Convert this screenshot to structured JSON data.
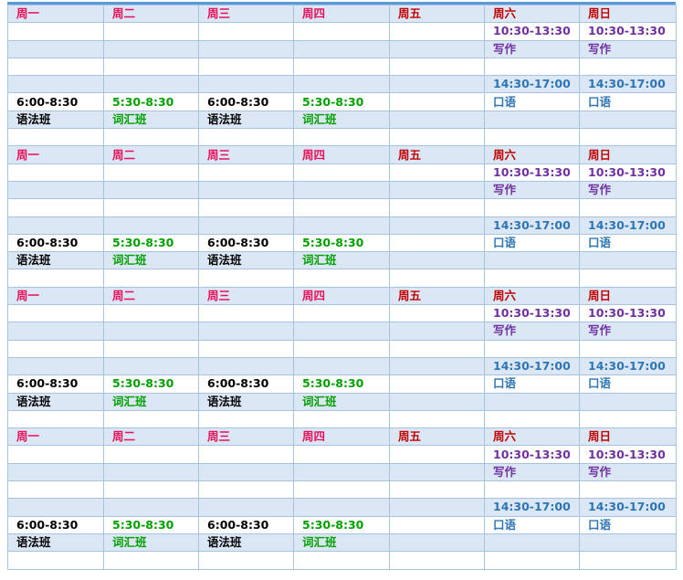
{
  "colors": {
    "weekday": "#e8115a",
    "fri": "#c00000",
    "weekend_header": "#c00000",
    "weekend_morning": "#7030a0",
    "weekend_afternoon": "#2e75b6",
    "grammar": "#000000",
    "vocab": "#00a000",
    "band": "#dbe7f4",
    "plain": "#ffffff",
    "border": "#a6c4e2",
    "top_rule": "#5b9bd5"
  },
  "blocks": [
    {
      "days": [
        "周一",
        "周二",
        "周三",
        "周四",
        "周五",
        "周六",
        "周日"
      ],
      "weekend_morning_time": [
        "10:30-13:30",
        "10:30-13:30"
      ],
      "weekend_morning_class": [
        "写作",
        "写作"
      ],
      "weekend_afternoon_time": [
        "14:30-17:00",
        "14:30-17:00"
      ],
      "weekend_afternoon_class": [
        "口语",
        "口语"
      ],
      "weekday_time": [
        "6:00-8:30",
        "5:30-8:30",
        "6:00-8:30",
        "5:30-8:30"
      ],
      "weekday_class": [
        "语法班",
        "词汇班",
        "语法班",
        "词汇班"
      ]
    },
    {
      "days": [
        "周一",
        "周二",
        "周三",
        "周四",
        "周五",
        "周六",
        "周日"
      ],
      "weekend_morning_time": [
        "10:30-13:30",
        "10:30-13:30"
      ],
      "weekend_morning_class": [
        "写作",
        "写作"
      ],
      "weekend_afternoon_time": [
        "14:30-17:00",
        "14:30-17:00"
      ],
      "weekend_afternoon_class": [
        "口语",
        "口语"
      ],
      "weekday_time": [
        "6:00-8:30",
        "5:30-8:30",
        "6:00-8:30",
        "5:30-8:30"
      ],
      "weekday_class": [
        "语法班",
        "词汇班",
        "语法班",
        "词汇班"
      ]
    },
    {
      "days": [
        "周一",
        "周二",
        "周三",
        "周四",
        "周五",
        "周六",
        "周日"
      ],
      "weekend_morning_time": [
        "10:30-13:30",
        "10:30-13:30"
      ],
      "weekend_morning_class": [
        "写作",
        "写作"
      ],
      "weekend_afternoon_time": [
        "14:30-17:00",
        "14:30-17:00"
      ],
      "weekend_afternoon_class": [
        "口语",
        "口语"
      ],
      "weekday_time": [
        "6:00-8:30",
        "5:30-8:30",
        "6:00-8:30",
        "5:30-8:30"
      ],
      "weekday_class": [
        "语法班",
        "词汇班",
        "语法班",
        "词汇班"
      ]
    },
    {
      "days": [
        "周一",
        "周二",
        "周三",
        "周四",
        "周五",
        "周六",
        "周日"
      ],
      "weekend_morning_time": [
        "10:30-13:30",
        "10:30-13:30"
      ],
      "weekend_morning_class": [
        "写作",
        "写作"
      ],
      "weekend_afternoon_time": [
        "14:30-17:00",
        "14:30-17:00"
      ],
      "weekend_afternoon_class": [
        "口语",
        "口语"
      ],
      "weekday_time": [
        "6:00-8:30",
        "5:30-8:30",
        "6:00-8:30",
        "5:30-8:30"
      ],
      "weekday_class": [
        "语法班",
        "词汇班",
        "语法班",
        "词汇班"
      ]
    }
  ]
}
